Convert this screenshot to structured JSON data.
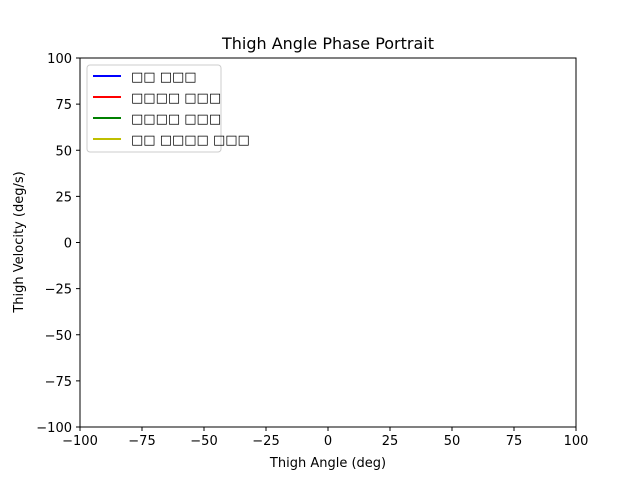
{
  "chart_data": {
    "type": "line",
    "title": "Thigh Angle Phase Portrait",
    "xlabel": "Thigh Angle (deg)",
    "ylabel": "Thigh Velocity (deg/s)",
    "xlim": [
      -100,
      100
    ],
    "ylim": [
      -100,
      100
    ],
    "xticks": [
      -100,
      -75,
      -50,
      -25,
      0,
      25,
      50,
      75,
      100
    ],
    "yticks": [
      -100,
      -75,
      -50,
      -25,
      0,
      25,
      50,
      75,
      100
    ],
    "xtick_labels": [
      "−100",
      "−75",
      "−50",
      "−25",
      "0",
      "25",
      "50",
      "75",
      "100"
    ],
    "ytick_labels": [
      "−100",
      "−75",
      "−50",
      "−25",
      "0",
      "25",
      "50",
      "75",
      "100"
    ],
    "grid": false,
    "legend_position": "top-left",
    "series": [
      {
        "name": "□□ □□□",
        "color": "#0000ff",
        "x": [],
        "y": []
      },
      {
        "name": "□□□□ □□□",
        "color": "#ff0000",
        "x": [],
        "y": []
      },
      {
        "name": "□□□□ □□□",
        "color": "#008000",
        "x": [],
        "y": []
      },
      {
        "name": "□□ □□□□ □□□",
        "color": "#bfbf00",
        "x": [],
        "y": []
      }
    ]
  }
}
